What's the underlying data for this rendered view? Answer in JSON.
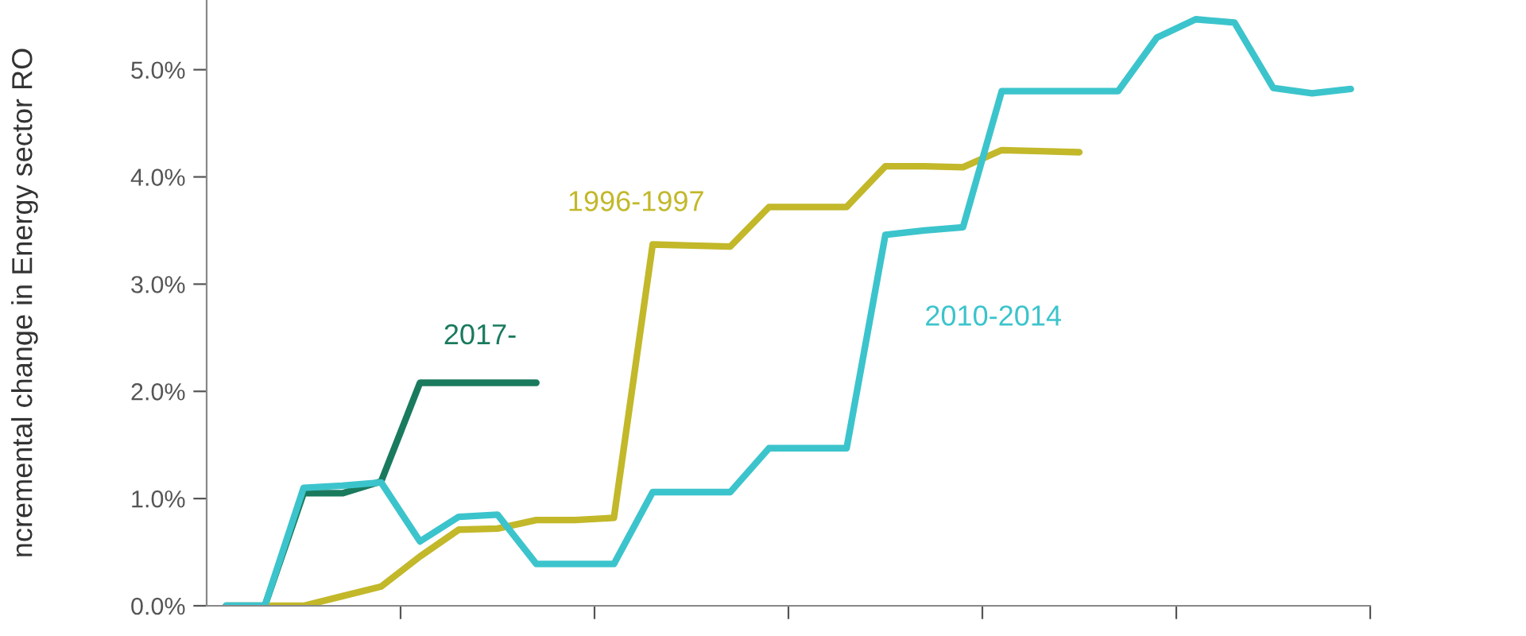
{
  "chart_data": {
    "type": "line",
    "ylabel": "ncremental change in Energy sector RO",
    "categories": [
      null,
      null,
      null,
      null,
      null,
      null,
      null,
      null,
      null,
      null,
      null,
      null,
      null,
      null,
      null,
      null,
      null,
      null,
      null,
      null,
      null,
      null,
      null,
      null,
      null,
      null,
      null,
      null,
      null,
      null
    ],
    "series": [
      {
        "name": "2017-",
        "color": "#1a7a5e",
        "values": [
          0,
          0,
          1.05,
          1.05,
          1.16,
          2.08,
          2.08,
          2.08,
          2.08,
          null,
          null,
          null,
          null,
          null,
          null,
          null,
          null,
          null,
          null,
          null,
          null,
          null,
          null,
          null,
          null,
          null,
          null,
          null,
          null,
          null
        ]
      },
      {
        "name": "1996-1997",
        "color": "#c2b82a",
        "values": [
          null,
          0,
          0,
          0.09,
          0.18,
          0.46,
          0.71,
          0.72,
          0.8,
          0.8,
          0.82,
          3.37,
          3.36,
          3.35,
          3.72,
          3.72,
          3.72,
          4.1,
          4.1,
          4.09,
          4.25,
          4.24,
          4.23,
          null,
          null,
          null,
          null,
          null,
          null,
          null
        ]
      },
      {
        "name": "2010-2014",
        "color": "#3cc4cc",
        "values": [
          0,
          0,
          1.1,
          1.12,
          1.15,
          0.6,
          0.83,
          0.85,
          0.39,
          0.39,
          0.39,
          1.06,
          1.06,
          1.06,
          1.47,
          1.47,
          1.47,
          3.46,
          3.5,
          3.53,
          4.8,
          4.8,
          4.8,
          4.8,
          5.3,
          5.47,
          5.44,
          4.83,
          4.78,
          4.82
        ]
      }
    ],
    "ylim": [
      0,
      5.65
    ],
    "yticks": [
      {
        "value": 0,
        "label": "0.0%"
      },
      {
        "value": 1,
        "label": "1.0%"
      },
      {
        "value": 2,
        "label": "2.0%"
      },
      {
        "value": 3,
        "label": "3.0%"
      },
      {
        "value": 4,
        "label": "4.0%"
      },
      {
        "value": 5,
        "label": "5.0%"
      }
    ],
    "grid": false,
    "legend": false,
    "marker": "none",
    "line_style": "solid"
  }
}
